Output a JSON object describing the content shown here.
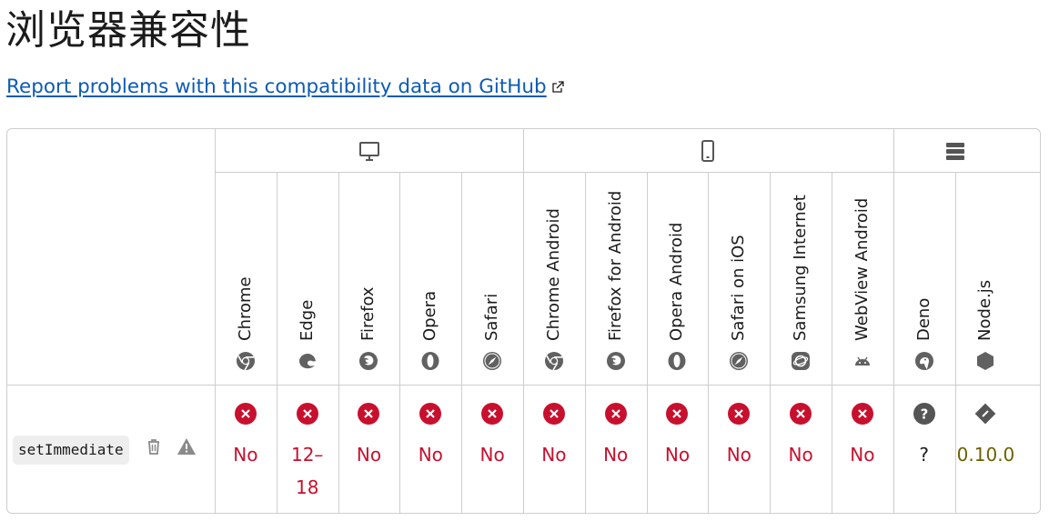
{
  "page": {
    "title": "浏览器兼容性",
    "report_link": "Report problems with this compatibility data on GitHub"
  },
  "platforms": [
    {
      "name": "desktop",
      "icon": "desktop-icon"
    },
    {
      "name": "mobile",
      "icon": "mobile-icon"
    },
    {
      "name": "server",
      "icon": "server-icon"
    }
  ],
  "browsers": [
    {
      "name": "Chrome",
      "icon": "chrome-icon",
      "support": "No",
      "status": "no"
    },
    {
      "name": "Edge",
      "icon": "edge-icon",
      "support": "12–\n18",
      "status": "no"
    },
    {
      "name": "Firefox",
      "icon": "firefox-icon",
      "support": "No",
      "status": "no"
    },
    {
      "name": "Opera",
      "icon": "opera-icon",
      "support": "No",
      "status": "no"
    },
    {
      "name": "Safari",
      "icon": "safari-icon",
      "support": "No",
      "status": "no"
    },
    {
      "name": "Chrome Android",
      "icon": "chrome-icon",
      "support": "No",
      "status": "no"
    },
    {
      "name": "Firefox for Android",
      "icon": "firefox-icon",
      "support": "No",
      "status": "no"
    },
    {
      "name": "Opera Android",
      "icon": "opera-icon",
      "support": "No",
      "status": "no"
    },
    {
      "name": "Safari on iOS",
      "icon": "safari-icon",
      "support": "No",
      "status": "no"
    },
    {
      "name": "Samsung Internet",
      "icon": "samsung-internet-icon",
      "support": "No",
      "status": "no"
    },
    {
      "name": "WebView Android",
      "icon": "android-icon",
      "support": "No",
      "status": "no"
    },
    {
      "name": "Deno",
      "icon": "deno-icon",
      "support": "?",
      "status": "unknown"
    },
    {
      "name": "Node.js",
      "icon": "nodejs-icon",
      "support": "0.10.0",
      "status": "yes"
    }
  ],
  "feature": {
    "name": "setImmediate",
    "flags": [
      "deprecated-icon",
      "non-standard-icon"
    ]
  },
  "colors": {
    "no": "#c8102e",
    "yes": "#6b6000",
    "unknown": "#1b1b1b",
    "link": "#0b5bb5"
  }
}
